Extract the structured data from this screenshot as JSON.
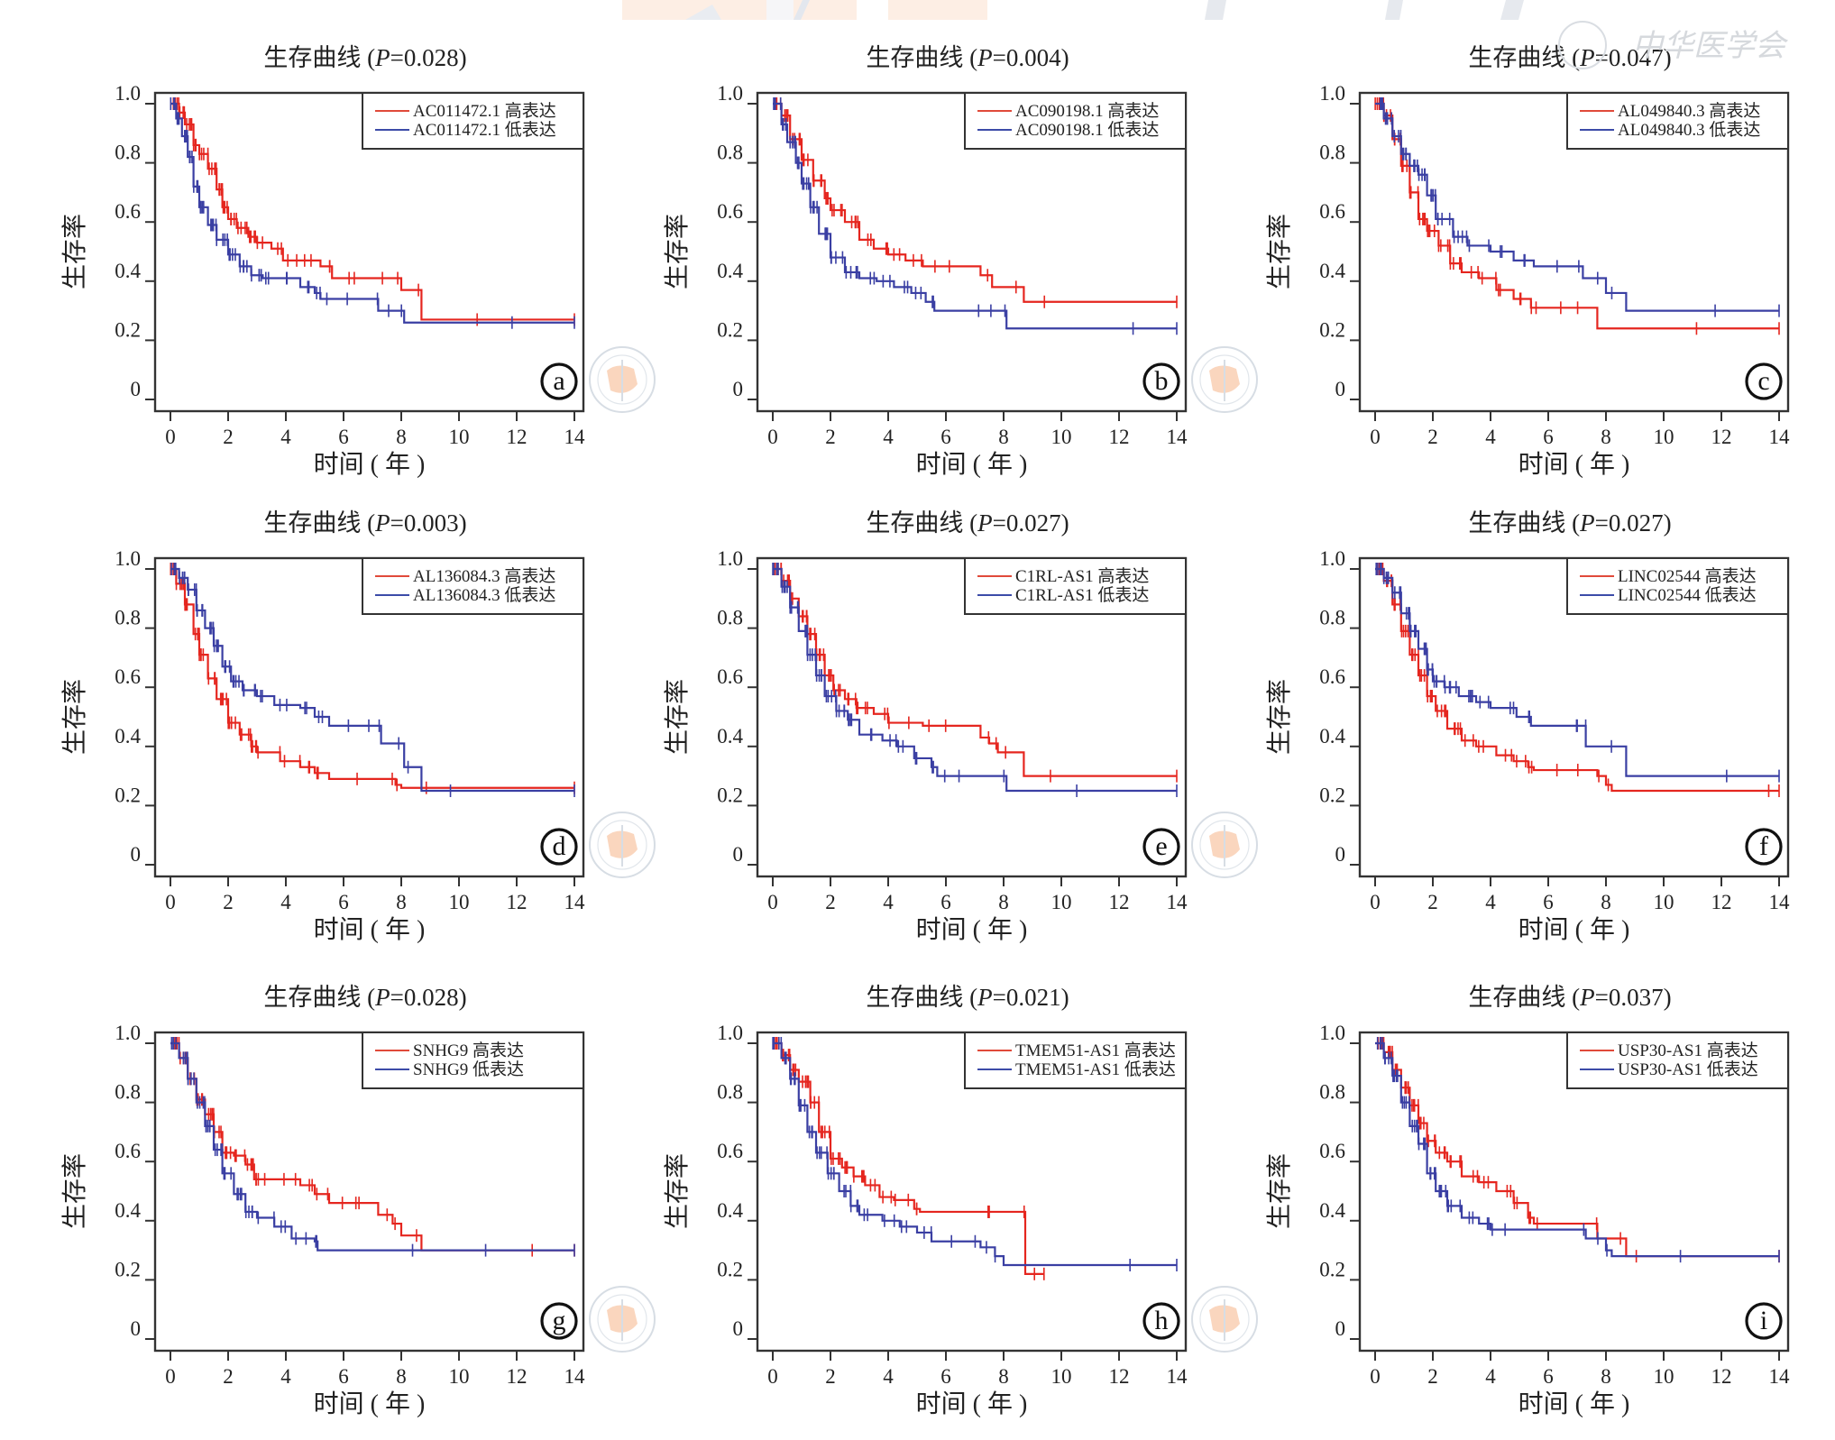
{
  "figure": {
    "title_prefix": "生存曲线",
    "y_axis_label": "生存率",
    "x_axis_label": "时间 ( 年 )",
    "high_suffix": "高表达",
    "low_suffix": "低表达",
    "colors": {
      "high": "#e5261f",
      "low": "#3a3fa3",
      "legend_high": "#e04a3a",
      "legend_low": "#3c4ba8"
    },
    "watermark_text": "中华医学会"
  },
  "chart_data": [
    {
      "panel": "a",
      "type": "line",
      "title": "生存曲线 (P=0.028)",
      "p_value": "0.028",
      "gene": "AC011472.1",
      "xlabel": "时间 ( 年 )",
      "ylabel": "生存率",
      "xlim": [
        0,
        14
      ],
      "ylim": [
        0,
        1.0
      ],
      "xticks": [
        0,
        2,
        4,
        6,
        8,
        10,
        12,
        14
      ],
      "yticks": [
        "0",
        "0.2",
        "0.4",
        "0.6",
        "0.8",
        "1.0"
      ],
      "legend": "top-right",
      "series": [
        {
          "name": "AC011472.1 高表达",
          "group": "high",
          "x": [
            0,
            0.3,
            0.5,
            0.8,
            1.0,
            1.3,
            1.6,
            1.8,
            2.0,
            2.3,
            2.7,
            3.0,
            3.5,
            3.9,
            4.5,
            5.2,
            5.6,
            6.5,
            7.7,
            8.0,
            8.7,
            14
          ],
          "y": [
            1.0,
            0.97,
            0.93,
            0.86,
            0.83,
            0.78,
            0.71,
            0.65,
            0.61,
            0.58,
            0.55,
            0.53,
            0.51,
            0.47,
            0.47,
            0.45,
            0.41,
            0.41,
            0.41,
            0.37,
            0.27,
            0.27
          ]
        },
        {
          "name": "AC011472.1 低表达",
          "group": "low",
          "x": [
            0,
            0.2,
            0.4,
            0.6,
            0.8,
            1.0,
            1.3,
            1.6,
            2.0,
            2.4,
            2.8,
            3.2,
            4.0,
            4.5,
            5.0,
            5.2,
            7.0,
            7.2,
            8.0,
            8.1,
            14
          ],
          "y": [
            1.0,
            0.95,
            0.89,
            0.82,
            0.72,
            0.65,
            0.59,
            0.54,
            0.49,
            0.45,
            0.42,
            0.41,
            0.41,
            0.38,
            0.36,
            0.34,
            0.34,
            0.3,
            0.3,
            0.26,
            0.26
          ]
        }
      ]
    },
    {
      "panel": "b",
      "type": "line",
      "title": "生存曲线 (P=0.004)",
      "p_value": "0.004",
      "gene": "AC090198.1",
      "xlabel": "时间 ( 年 )",
      "ylabel": "生存率",
      "xlim": [
        0,
        14
      ],
      "ylim": [
        0,
        1.0
      ],
      "xticks": [
        0,
        2,
        4,
        6,
        8,
        10,
        12,
        14
      ],
      "yticks": [
        "0",
        "0.2",
        "0.4",
        "0.6",
        "0.8",
        "1.0"
      ],
      "legend": "top-right",
      "series": [
        {
          "name": "AC090198.1 高表达",
          "group": "high",
          "x": [
            0,
            0.3,
            0.6,
            1.0,
            1.4,
            1.8,
            2.0,
            2.5,
            3.0,
            3.5,
            4.0,
            4.6,
            5.2,
            7.2,
            7.6,
            8.7,
            14
          ],
          "y": [
            1.0,
            0.96,
            0.88,
            0.81,
            0.74,
            0.68,
            0.64,
            0.6,
            0.54,
            0.51,
            0.49,
            0.47,
            0.45,
            0.42,
            0.38,
            0.33,
            0.33
          ]
        },
        {
          "name": "AC090198.1 低表达",
          "group": "low",
          "x": [
            0,
            0.3,
            0.5,
            0.8,
            1.0,
            1.3,
            1.6,
            2.0,
            2.5,
            3.0,
            3.6,
            4.2,
            4.8,
            5.3,
            5.6,
            8.0,
            8.1,
            14
          ],
          "y": [
            1.0,
            0.93,
            0.87,
            0.8,
            0.73,
            0.65,
            0.56,
            0.48,
            0.43,
            0.41,
            0.4,
            0.38,
            0.36,
            0.33,
            0.3,
            0.3,
            0.24,
            0.24
          ]
        }
      ]
    },
    {
      "panel": "c",
      "type": "line",
      "title": "生存曲线 (P=0.047)",
      "p_value": "0.047",
      "gene": "AL049840.3",
      "xlabel": "时间 ( 年 )",
      "ylabel": "生存率",
      "xlim": [
        0,
        14
      ],
      "ylim": [
        0,
        1.0
      ],
      "xticks": [
        0,
        2,
        4,
        6,
        8,
        10,
        12,
        14
      ],
      "yticks": [
        "0",
        "0.2",
        "0.4",
        "0.6",
        "0.8",
        "1.0"
      ],
      "legend": "top-right",
      "series": [
        {
          "name": "AL049840.3 高表达",
          "group": "high",
          "x": [
            0,
            0.3,
            0.6,
            0.9,
            1.2,
            1.5,
            1.8,
            2.2,
            2.6,
            3.0,
            3.6,
            4.2,
            4.8,
            5.4,
            5.6,
            7.7,
            14
          ],
          "y": [
            1.0,
            0.96,
            0.88,
            0.79,
            0.7,
            0.61,
            0.57,
            0.52,
            0.46,
            0.43,
            0.41,
            0.37,
            0.34,
            0.31,
            0.31,
            0.24,
            0.24
          ]
        },
        {
          "name": "AL049840.3 低表达",
          "group": "low",
          "x": [
            0,
            0.3,
            0.6,
            0.9,
            1.2,
            1.5,
            1.8,
            2.1,
            2.7,
            3.2,
            4.0,
            4.8,
            5.5,
            7.2,
            8.0,
            8.7,
            14
          ],
          "y": [
            1.0,
            0.95,
            0.89,
            0.83,
            0.79,
            0.76,
            0.69,
            0.61,
            0.55,
            0.52,
            0.5,
            0.47,
            0.45,
            0.41,
            0.36,
            0.3,
            0.3
          ]
        }
      ]
    },
    {
      "panel": "d",
      "type": "line",
      "title": "生存曲线 (P=0.003)",
      "p_value": "0.003",
      "gene": "AL136084.3",
      "xlabel": "时间 ( 年 )",
      "ylabel": "生存率",
      "xlim": [
        0,
        14
      ],
      "ylim": [
        0,
        1.0
      ],
      "xticks": [
        0,
        2,
        4,
        6,
        8,
        10,
        12,
        14
      ],
      "yticks": [
        "0",
        "0.2",
        "0.4",
        "0.6",
        "0.8",
        "1.0"
      ],
      "legend": "top-right",
      "series": [
        {
          "name": "AL136084.3 高表达",
          "group": "high",
          "x": [
            0,
            0.2,
            0.5,
            0.8,
            1.0,
            1.3,
            1.6,
            2.0,
            2.4,
            2.8,
            3.0,
            3.8,
            4.5,
            5.0,
            5.5,
            7.8,
            8.0,
            14
          ],
          "y": [
            1.0,
            0.95,
            0.88,
            0.78,
            0.71,
            0.63,
            0.56,
            0.48,
            0.44,
            0.4,
            0.38,
            0.35,
            0.33,
            0.31,
            0.29,
            0.27,
            0.26,
            0.26
          ]
        },
        {
          "name": "AL136084.3 低表达",
          "group": "low",
          "x": [
            0,
            0.3,
            0.6,
            0.9,
            1.2,
            1.5,
            1.8,
            2.1,
            2.5,
            3.0,
            3.6,
            4.5,
            5.0,
            5.5,
            7.2,
            7.3,
            8.1,
            8.7,
            14
          ],
          "y": [
            1.0,
            0.97,
            0.93,
            0.86,
            0.8,
            0.74,
            0.67,
            0.62,
            0.59,
            0.57,
            0.54,
            0.53,
            0.5,
            0.47,
            0.47,
            0.41,
            0.33,
            0.25,
            0.25
          ]
        }
      ]
    },
    {
      "panel": "e",
      "type": "line",
      "title": "生存曲线 (P=0.027)",
      "p_value": "0.027",
      "gene": "C1RL-AS1",
      "xlabel": "时间 ( 年 )",
      "ylabel": "生存率",
      "xlim": [
        0,
        14
      ],
      "ylim": [
        0,
        1.0
      ],
      "xticks": [
        0,
        2,
        4,
        6,
        8,
        10,
        12,
        14
      ],
      "yticks": [
        "0",
        "0.2",
        "0.4",
        "0.6",
        "0.8",
        "1.0"
      ],
      "legend": "top-right",
      "series": [
        {
          "name": "C1RL-AS1 高表达",
          "group": "high",
          "x": [
            0,
            0.3,
            0.6,
            0.9,
            1.2,
            1.5,
            1.8,
            2.1,
            2.5,
            2.9,
            3.5,
            4.0,
            5.2,
            7.2,
            7.5,
            7.8,
            8.7,
            14
          ],
          "y": [
            1.0,
            0.96,
            0.9,
            0.84,
            0.78,
            0.71,
            0.64,
            0.59,
            0.56,
            0.53,
            0.51,
            0.48,
            0.47,
            0.43,
            0.41,
            0.38,
            0.3,
            0.3
          ]
        },
        {
          "name": "C1RL-AS1 低表达",
          "group": "low",
          "x": [
            0,
            0.3,
            0.6,
            0.9,
            1.2,
            1.5,
            1.8,
            2.2,
            2.6,
            3.0,
            3.8,
            4.3,
            4.9,
            5.5,
            5.7,
            8.0,
            8.1,
            14
          ],
          "y": [
            1.0,
            0.94,
            0.87,
            0.79,
            0.71,
            0.64,
            0.57,
            0.52,
            0.49,
            0.44,
            0.42,
            0.4,
            0.36,
            0.33,
            0.3,
            0.3,
            0.25,
            0.25
          ]
        }
      ]
    },
    {
      "panel": "f",
      "type": "line",
      "title": "生存曲线 (P=0.027)",
      "p_value": "0.027",
      "gene": "LINC02544",
      "xlabel": "时间 ( 年 )",
      "ylabel": "生存率",
      "xlim": [
        0,
        14
      ],
      "ylim": [
        0,
        1.0
      ],
      "xticks": [
        0,
        2,
        4,
        6,
        8,
        10,
        12,
        14
      ],
      "yticks": [
        "0",
        "0.2",
        "0.4",
        "0.6",
        "0.8",
        "1.0"
      ],
      "legend": "top-right",
      "series": [
        {
          "name": "LINC02544 高表达",
          "group": "high",
          "x": [
            0,
            0.3,
            0.6,
            0.9,
            1.2,
            1.5,
            1.8,
            2.1,
            2.5,
            3.0,
            3.5,
            4.2,
            4.8,
            5.3,
            5.5,
            7.7,
            8.0,
            8.2,
            14
          ],
          "y": [
            1.0,
            0.96,
            0.88,
            0.79,
            0.71,
            0.64,
            0.57,
            0.52,
            0.46,
            0.42,
            0.4,
            0.37,
            0.35,
            0.33,
            0.32,
            0.3,
            0.27,
            0.25,
            0.25
          ]
        },
        {
          "name": "LINC02544 低表达",
          "group": "low",
          "x": [
            0,
            0.3,
            0.6,
            0.9,
            1.2,
            1.5,
            1.8,
            2.0,
            2.4,
            2.9,
            3.5,
            4.0,
            4.9,
            5.4,
            7.2,
            7.3,
            8.7,
            14
          ],
          "y": [
            1.0,
            0.97,
            0.92,
            0.85,
            0.79,
            0.73,
            0.66,
            0.62,
            0.6,
            0.57,
            0.55,
            0.53,
            0.5,
            0.47,
            0.47,
            0.4,
            0.3,
            0.3
          ]
        }
      ]
    },
    {
      "panel": "g",
      "type": "line",
      "title": "生存曲线 (P=0.028)",
      "p_value": "0.028",
      "gene": "SNHG9",
      "xlabel": "时间 ( 年 )",
      "ylabel": "生存率",
      "xlim": [
        0,
        14
      ],
      "ylim": [
        0,
        1.0
      ],
      "xticks": [
        0,
        2,
        4,
        6,
        8,
        10,
        12,
        14
      ],
      "yticks": [
        "0",
        "0.2",
        "0.4",
        "0.6",
        "0.8",
        "1.0"
      ],
      "legend": "top-right",
      "series": [
        {
          "name": "SNHG9 高表达",
          "group": "high",
          "x": [
            0,
            0.3,
            0.6,
            0.9,
            1.2,
            1.5,
            1.8,
            2.2,
            2.6,
            2.9,
            3.7,
            4.5,
            5.0,
            5.5,
            6.5,
            7.2,
            7.7,
            8.0,
            8.7,
            14
          ],
          "y": [
            1.0,
            0.95,
            0.88,
            0.81,
            0.76,
            0.7,
            0.63,
            0.62,
            0.59,
            0.54,
            0.54,
            0.52,
            0.49,
            0.46,
            0.46,
            0.42,
            0.39,
            0.35,
            0.3,
            0.3
          ]
        },
        {
          "name": "SNHG9 低表达",
          "group": "low",
          "x": [
            0,
            0.3,
            0.6,
            0.9,
            1.2,
            1.5,
            1.8,
            2.2,
            2.6,
            3.0,
            3.6,
            4.2,
            5.0,
            5.1,
            14
          ],
          "y": [
            1.0,
            0.95,
            0.88,
            0.8,
            0.72,
            0.64,
            0.56,
            0.49,
            0.43,
            0.41,
            0.38,
            0.34,
            0.33,
            0.3,
            0.3
          ]
        }
      ]
    },
    {
      "panel": "h",
      "type": "line",
      "title": "生存曲线 (P=0.021)",
      "p_value": "0.021",
      "gene": "TMEM51-AS1",
      "xlabel": "时间 ( 年 )",
      "ylabel": "生存率",
      "xlim": [
        0,
        14
      ],
      "ylim": [
        0,
        1.0
      ],
      "xticks": [
        0,
        2,
        4,
        6,
        8,
        10,
        12,
        14
      ],
      "yticks": [
        "0",
        "0.2",
        "0.4",
        "0.6",
        "0.8",
        "1.0"
      ],
      "legend": "top-right",
      "series": [
        {
          "name": "TMEM51-AS1 高表达",
          "group": "high",
          "x": [
            0,
            0.3,
            0.6,
            0.9,
            1.3,
            1.6,
            2.0,
            2.4,
            2.8,
            3.2,
            3.7,
            4.2,
            4.9,
            5.1,
            8.7,
            8.75,
            9.4
          ],
          "y": [
            1.0,
            0.96,
            0.91,
            0.87,
            0.8,
            0.7,
            0.61,
            0.58,
            0.55,
            0.52,
            0.48,
            0.47,
            0.44,
            0.43,
            0.43,
            0.22,
            0.22
          ]
        },
        {
          "name": "TMEM51-AS1 低表达",
          "group": "low",
          "x": [
            0,
            0.3,
            0.6,
            0.9,
            1.2,
            1.5,
            1.9,
            2.3,
            2.7,
            3.0,
            3.8,
            4.4,
            5.0,
            5.5,
            7.2,
            7.7,
            8.0,
            14
          ],
          "y": [
            1.0,
            0.95,
            0.88,
            0.79,
            0.7,
            0.63,
            0.56,
            0.5,
            0.45,
            0.42,
            0.4,
            0.38,
            0.36,
            0.33,
            0.31,
            0.28,
            0.25,
            0.25
          ]
        }
      ]
    },
    {
      "panel": "i",
      "type": "line",
      "title": "生存曲线 (P=0.037)",
      "p_value": "0.037",
      "gene": "USP30-AS1",
      "xlabel": "时间 ( 年 )",
      "ylabel": "生存率",
      "xlim": [
        0,
        14
      ],
      "ylim": [
        0,
        1.0
      ],
      "xticks": [
        0,
        2,
        4,
        6,
        8,
        10,
        12,
        14
      ],
      "yticks": [
        "0",
        "0.2",
        "0.4",
        "0.6",
        "0.8",
        "1.0"
      ],
      "legend": "top-right",
      "series": [
        {
          "name": "USP30-AS1 高表达",
          "group": "high",
          "x": [
            0,
            0.3,
            0.6,
            0.9,
            1.2,
            1.5,
            1.8,
            2.1,
            2.5,
            3.0,
            3.6,
            4.2,
            4.8,
            5.3,
            5.5,
            7.7,
            8.7,
            14
          ],
          "y": [
            1.0,
            0.97,
            0.91,
            0.85,
            0.79,
            0.73,
            0.67,
            0.63,
            0.6,
            0.55,
            0.53,
            0.5,
            0.46,
            0.41,
            0.39,
            0.34,
            0.28,
            0.28
          ]
        },
        {
          "name": "USP30-AS1 低表达",
          "group": "low",
          "x": [
            0,
            0.3,
            0.6,
            0.9,
            1.2,
            1.5,
            1.8,
            2.1,
            2.5,
            3.0,
            3.6,
            4.0,
            7.2,
            7.3,
            8.0,
            8.2,
            14
          ],
          "y": [
            1.0,
            0.95,
            0.89,
            0.8,
            0.72,
            0.66,
            0.56,
            0.5,
            0.45,
            0.41,
            0.39,
            0.37,
            0.37,
            0.34,
            0.3,
            0.28,
            0.28
          ]
        }
      ]
    }
  ]
}
